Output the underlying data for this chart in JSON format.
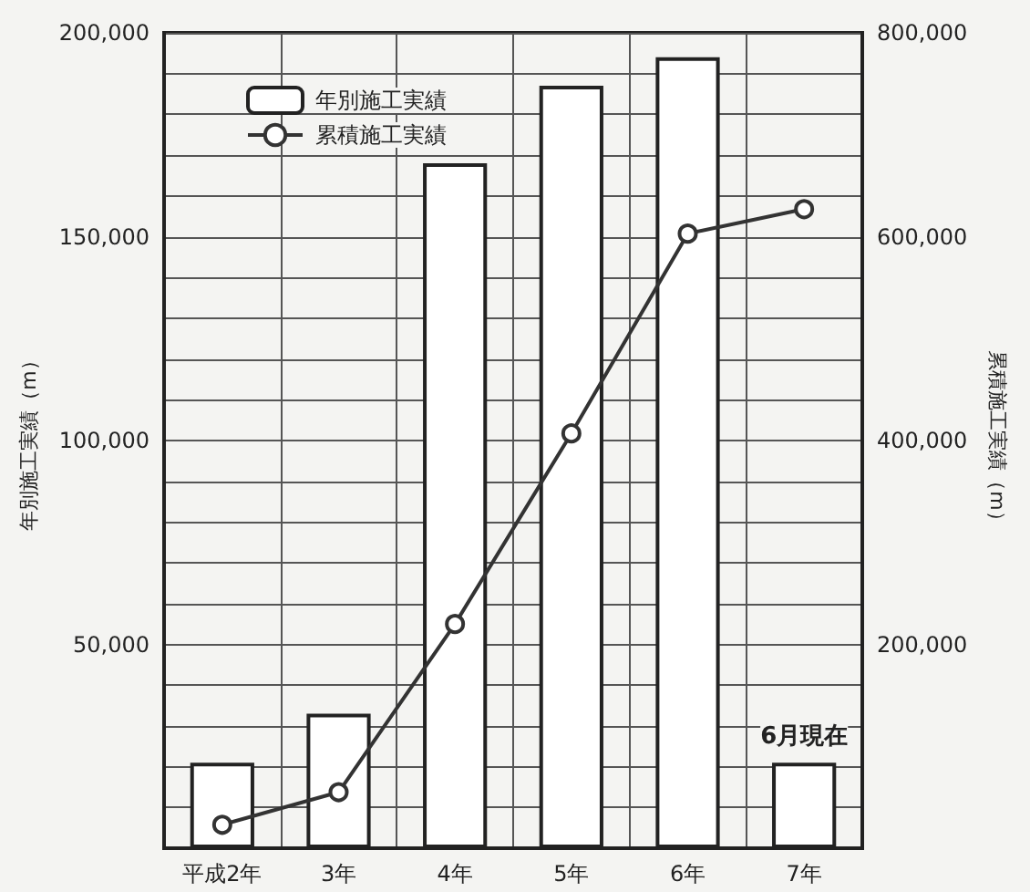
{
  "chart_data": {
    "type": "bar",
    "categories": [
      "平成2年",
      "3年",
      "4年",
      "5年",
      "6年",
      "7年"
    ],
    "series": [
      {
        "name": "年別施工実績",
        "color": "#ffffff",
        "values": [
          21000,
          33000,
          168000,
          187000,
          194000,
          21000
        ]
      },
      {
        "name": "累積施工実績",
        "type": "line",
        "axis": "y2",
        "color": "#333333",
        "marker": "circle",
        "values": [
          23000,
          55000,
          220000,
          407000,
          603000,
          627000
        ]
      }
    ],
    "ylabel": "年別施工実績（m）",
    "y2label": "累積施工実績（m）",
    "ylim": [
      0,
      200000
    ],
    "yticks": [
      {
        "value": 0,
        "label": null
      },
      {
        "value": 10000,
        "label": null
      },
      {
        "value": 20000,
        "label": null
      },
      {
        "value": 30000,
        "label": null
      },
      {
        "value": 40000,
        "label": null
      },
      {
        "value": 50000,
        "label": "50,000"
      },
      {
        "value": 60000,
        "label": null
      },
      {
        "value": 70000,
        "label": null
      },
      {
        "value": 80000,
        "label": null
      },
      {
        "value": 90000,
        "label": null
      },
      {
        "value": 100000,
        "label": "100,000"
      },
      {
        "value": 110000,
        "label": null
      },
      {
        "value": 120000,
        "label": null
      },
      {
        "value": 130000,
        "label": null
      },
      {
        "value": 140000,
        "label": null
      },
      {
        "value": 150000,
        "label": "150,000"
      },
      {
        "value": 160000,
        "label": null
      },
      {
        "value": 170000,
        "label": null
      },
      {
        "value": 180000,
        "label": null
      },
      {
        "value": 190000,
        "label": null
      },
      {
        "value": 200000,
        "label": "200,000"
      }
    ],
    "y2lim": [
      0,
      800000
    ],
    "y2ticks": [
      {
        "value": 200000,
        "label": "200,000"
      },
      {
        "value": 400000,
        "label": "400,000"
      },
      {
        "value": 600000,
        "label": "600,000"
      },
      {
        "value": 800000,
        "label": "800,000"
      }
    ],
    "annotations": [
      {
        "text": "6月現在",
        "x": "7年",
        "y": 21000
      }
    ],
    "grid": true,
    "legend": "top left"
  }
}
